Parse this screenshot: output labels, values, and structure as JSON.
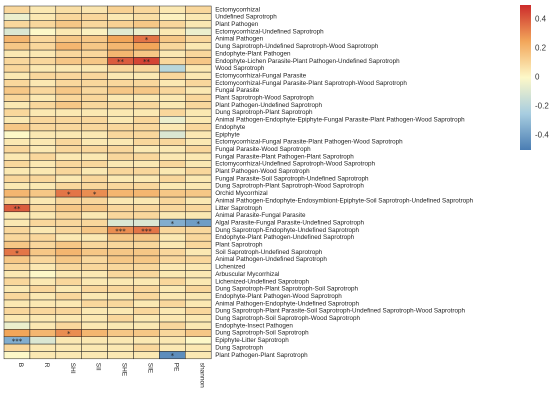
{
  "chart_data": {
    "type": "heatmap",
    "x_labels": [
      "B",
      "R",
      "SHI",
      "SII",
      "SHE",
      "SIE",
      "PE",
      "shannon"
    ],
    "y_labels": [
      "Ectomycorrhizal",
      "Undefined Saprotroph",
      "Plant Pathogen",
      "Ectomycorrhizal-Undefined Saprotroph",
      "Animal Pathogen",
      "Dung Saprotroph-Undefined Saprotroph-Wood Saprotroph",
      "Endophyte-Plant Pathogen",
      "Endophyte-Lichen Parasite-Plant Pathogen-Undefined Saprotroph",
      "Wood Saprotroph",
      "Ectomycorrhizal-Fungal Parasite",
      "Ectomycorrhizal-Fungal Parasite-Plant Saprotroph-Wood Saprotroph",
      "Fungal Parasite",
      "Plant Saprotroph-Wood Saprotroph",
      "Plant Pathogen-Undefined Saprotroph",
      "Dung Saprotroph-Plant Saprotroph",
      "Animal Pathogen-Endophyte-Epiphyte-Fungal Parasite-Plant Pathogen-Wood Saprotroph",
      "Endophyte",
      "Epiphyte",
      "Ectomycorrhizal-Fungal Parasite-Plant Pathogen-Wood Saprotroph",
      "Fungal Parasite-Wood Saprotroph",
      "Fungal Parasite-Plant Pathogen-Plant Saprotroph",
      "Ectomycorrhizal-Undefined Saprotroph-Wood Saprotroph",
      "Plant Pathogen-Wood Saprotroph",
      "Fungal Parasite-Soil Saprotroph-Undefined Saprotroph",
      "Dung Saprotroph-Plant Saprotroph-Wood Saprotroph",
      "Orchid Mycorrhizal",
      "Animal Pathogen-Endophyte-Endosymbiont-Epiphyte-Soil Saprotroph-Undefined Saprotroph",
      "Litter Saprotroph",
      "Animal Parasite-Fungal Parasite",
      "Algal Parasite-Fungal Parasite-Undefined Saprotroph",
      "Dung Saprotroph-Endophyte-Undefined Saprotroph",
      "Endophyte-Plant Pathogen-Undefined Saprotroph",
      "Plant Saprotroph",
      "Soil Saprotroph-Undefined Saprotroph",
      "Animal Pathogen-Undefined Saprotroph",
      "Lichenized",
      "Arbuscular Mycorrhizal",
      "Lichenized-Undefined Saprotroph",
      "Dung Saprotroph-Plant Saprotroph-Soil Saprotroph",
      "Endophyte-Plant Pathogen-Wood Saprotroph",
      "Animal Pathogen-Endophyte-Undefined Saprotroph",
      "Dung Saprotroph-Plant Parasite-Soil Saprotroph-Undefined Saprotroph-Wood Saprotroph",
      "Dung Saprotroph-Soil Saprotroph-Wood Saprotroph",
      "Endophyte-Insect Pathogen",
      "Dung Saprotroph-Soil Saprotroph",
      "Epiphyte-Litter Saprotroph",
      "Dung Saprotroph",
      "Plant Pathogen-Plant Saprotroph"
    ],
    "values": [
      [
        0.1,
        0.05,
        0.08,
        0.06,
        0.12,
        0.1,
        0.05,
        0.1
      ],
      [
        -0.05,
        0.05,
        0.1,
        0.1,
        0.05,
        0.08,
        0.02,
        0.05
      ],
      [
        0.1,
        0.1,
        0.15,
        0.1,
        0.12,
        0.15,
        0.1,
        0.05
      ],
      [
        -0.1,
        0.0,
        0.05,
        0.02,
        -0.08,
        -0.05,
        0.05,
        -0.05
      ],
      [
        0.2,
        0.1,
        0.15,
        0.15,
        0.25,
        0.35,
        0.15,
        0.1
      ],
      [
        0.15,
        0.1,
        0.2,
        0.15,
        0.2,
        0.25,
        0.1,
        0.05
      ],
      [
        0.05,
        0.05,
        0.1,
        0.1,
        0.2,
        0.15,
        0.05,
        0.1
      ],
      [
        0.1,
        0.1,
        0.15,
        0.15,
        0.4,
        0.45,
        0.1,
        0.15
      ],
      [
        0.1,
        0.05,
        0.05,
        0.05,
        0.1,
        0.1,
        -0.2,
        0.05
      ],
      [
        0.05,
        0.1,
        0.1,
        0.1,
        0.05,
        0.05,
        0.1,
        0.05
      ],
      [
        0.1,
        0.05,
        0.1,
        0.1,
        0.1,
        0.1,
        0.05,
        0.1
      ],
      [
        0.15,
        0.1,
        0.15,
        0.1,
        0.15,
        0.15,
        0.1,
        0.05
      ],
      [
        0.1,
        0.05,
        0.1,
        0.1,
        0.05,
        0.05,
        0.05,
        0.1
      ],
      [
        0.05,
        0.1,
        0.15,
        0.1,
        0.1,
        0.1,
        0.05,
        0.1
      ],
      [
        0.1,
        0.05,
        0.05,
        0.05,
        0.05,
        0.05,
        0.1,
        0.05
      ],
      [
        0.05,
        0.1,
        0.1,
        0.1,
        0.05,
        0.1,
        -0.05,
        0.05
      ],
      [
        0.15,
        0.1,
        0.1,
        0.1,
        0.1,
        0.1,
        0.05,
        0.1
      ],
      [
        0.0,
        0.05,
        0.05,
        0.05,
        0.1,
        0.1,
        -0.1,
        0.05
      ],
      [
        0.05,
        0.05,
        0.1,
        0.05,
        0.05,
        0.1,
        0.1,
        0.05
      ],
      [
        0.1,
        0.05,
        0.1,
        0.1,
        0.1,
        0.05,
        0.05,
        0.1
      ],
      [
        0.05,
        0.1,
        0.05,
        0.05,
        0.1,
        0.1,
        0.05,
        0.05
      ],
      [
        0.1,
        0.05,
        0.1,
        0.1,
        0.05,
        0.05,
        0.1,
        0.05
      ],
      [
        0.05,
        0.05,
        0.1,
        0.05,
        0.1,
        0.1,
        0.05,
        0.1
      ],
      [
        0.1,
        0.1,
        0.05,
        0.1,
        0.05,
        0.05,
        0.1,
        0.05
      ],
      [
        0.05,
        0.05,
        0.1,
        0.1,
        0.1,
        0.1,
        0.05,
        0.05
      ],
      [
        0.2,
        0.15,
        0.35,
        0.3,
        0.2,
        0.2,
        0.15,
        0.15
      ],
      [
        0.1,
        0.05,
        0.1,
        0.1,
        0.05,
        0.05,
        0.1,
        0.05
      ],
      [
        0.4,
        0.1,
        0.15,
        0.15,
        0.1,
        0.1,
        0.1,
        0.1
      ],
      [
        0.05,
        0.05,
        0.1,
        0.05,
        0.1,
        0.1,
        0.05,
        0.05
      ],
      [
        0.05,
        0.1,
        0.1,
        0.1,
        -0.1,
        -0.1,
        -0.35,
        -0.4
      ],
      [
        0.1,
        0.05,
        0.1,
        0.15,
        0.3,
        0.35,
        0.1,
        0.1
      ],
      [
        0.1,
        0.1,
        0.05,
        0.05,
        0.15,
        0.15,
        0.05,
        0.1
      ],
      [
        0.15,
        0.1,
        0.15,
        0.1,
        0.1,
        0.1,
        0.05,
        0.1
      ],
      [
        0.35,
        0.15,
        0.2,
        0.15,
        0.15,
        0.15,
        0.1,
        0.05
      ],
      [
        0.15,
        0.1,
        0.15,
        0.1,
        0.15,
        0.15,
        0.1,
        0.1
      ],
      [
        0.1,
        0.05,
        0.1,
        0.1,
        0.1,
        0.1,
        0.05,
        0.05
      ],
      [
        0.05,
        0.0,
        0.05,
        0.05,
        0.1,
        0.1,
        0.05,
        0.05
      ],
      [
        0.1,
        0.05,
        0.1,
        0.05,
        0.05,
        0.05,
        0.1,
        0.05
      ],
      [
        0.05,
        0.1,
        0.05,
        0.1,
        0.1,
        0.1,
        0.05,
        0.1
      ],
      [
        0.1,
        0.05,
        0.1,
        0.05,
        0.05,
        0.1,
        0.05,
        0.05
      ],
      [
        0.05,
        0.05,
        0.05,
        0.1,
        0.1,
        0.05,
        0.1,
        0.05
      ],
      [
        0.1,
        0.1,
        0.1,
        0.05,
        0.05,
        0.1,
        0.05,
        0.1
      ],
      [
        0.05,
        0.05,
        0.05,
        0.05,
        0.1,
        0.05,
        0.05,
        0.05
      ],
      [
        -0.05,
        0.05,
        0.1,
        0.05,
        0.05,
        0.05,
        0.1,
        0.05
      ],
      [
        0.25,
        0.2,
        0.3,
        0.2,
        0.15,
        0.15,
        0.1,
        0.15
      ],
      [
        -0.35,
        -0.1,
        0.05,
        0.05,
        0.05,
        0.05,
        0.05,
        0.0
      ],
      [
        0.1,
        0.05,
        0.05,
        0.05,
        0.05,
        0.1,
        0.05,
        0.05
      ],
      [
        0.0,
        0.05,
        0.05,
        0.05,
        0.05,
        0.05,
        -0.45,
        0.05
      ]
    ],
    "significance": [
      [
        4,
        5,
        "*"
      ],
      [
        7,
        4,
        "**"
      ],
      [
        7,
        5,
        "**"
      ],
      [
        25,
        2,
        "*"
      ],
      [
        25,
        3,
        "*"
      ],
      [
        27,
        0,
        "**"
      ],
      [
        29,
        6,
        "*"
      ],
      [
        29,
        7,
        "*"
      ],
      [
        30,
        4,
        "***"
      ],
      [
        30,
        5,
        "***"
      ],
      [
        33,
        0,
        "*"
      ],
      [
        44,
        2,
        "*"
      ],
      [
        45,
        0,
        "***"
      ],
      [
        47,
        6,
        "*"
      ]
    ],
    "colorbar": {
      "ticks": [
        0.4,
        0.2,
        0,
        -0.2,
        -0.4
      ],
      "tick_labels": [
        "0.4",
        "0.2",
        "0",
        "-0.2",
        "-0.4"
      ],
      "range": [
        -0.5,
        0.5
      ],
      "colors": {
        "negative": "#4a7db3",
        "neutral": "#fdf8c8",
        "positive": "#cc2b2b"
      }
    }
  }
}
